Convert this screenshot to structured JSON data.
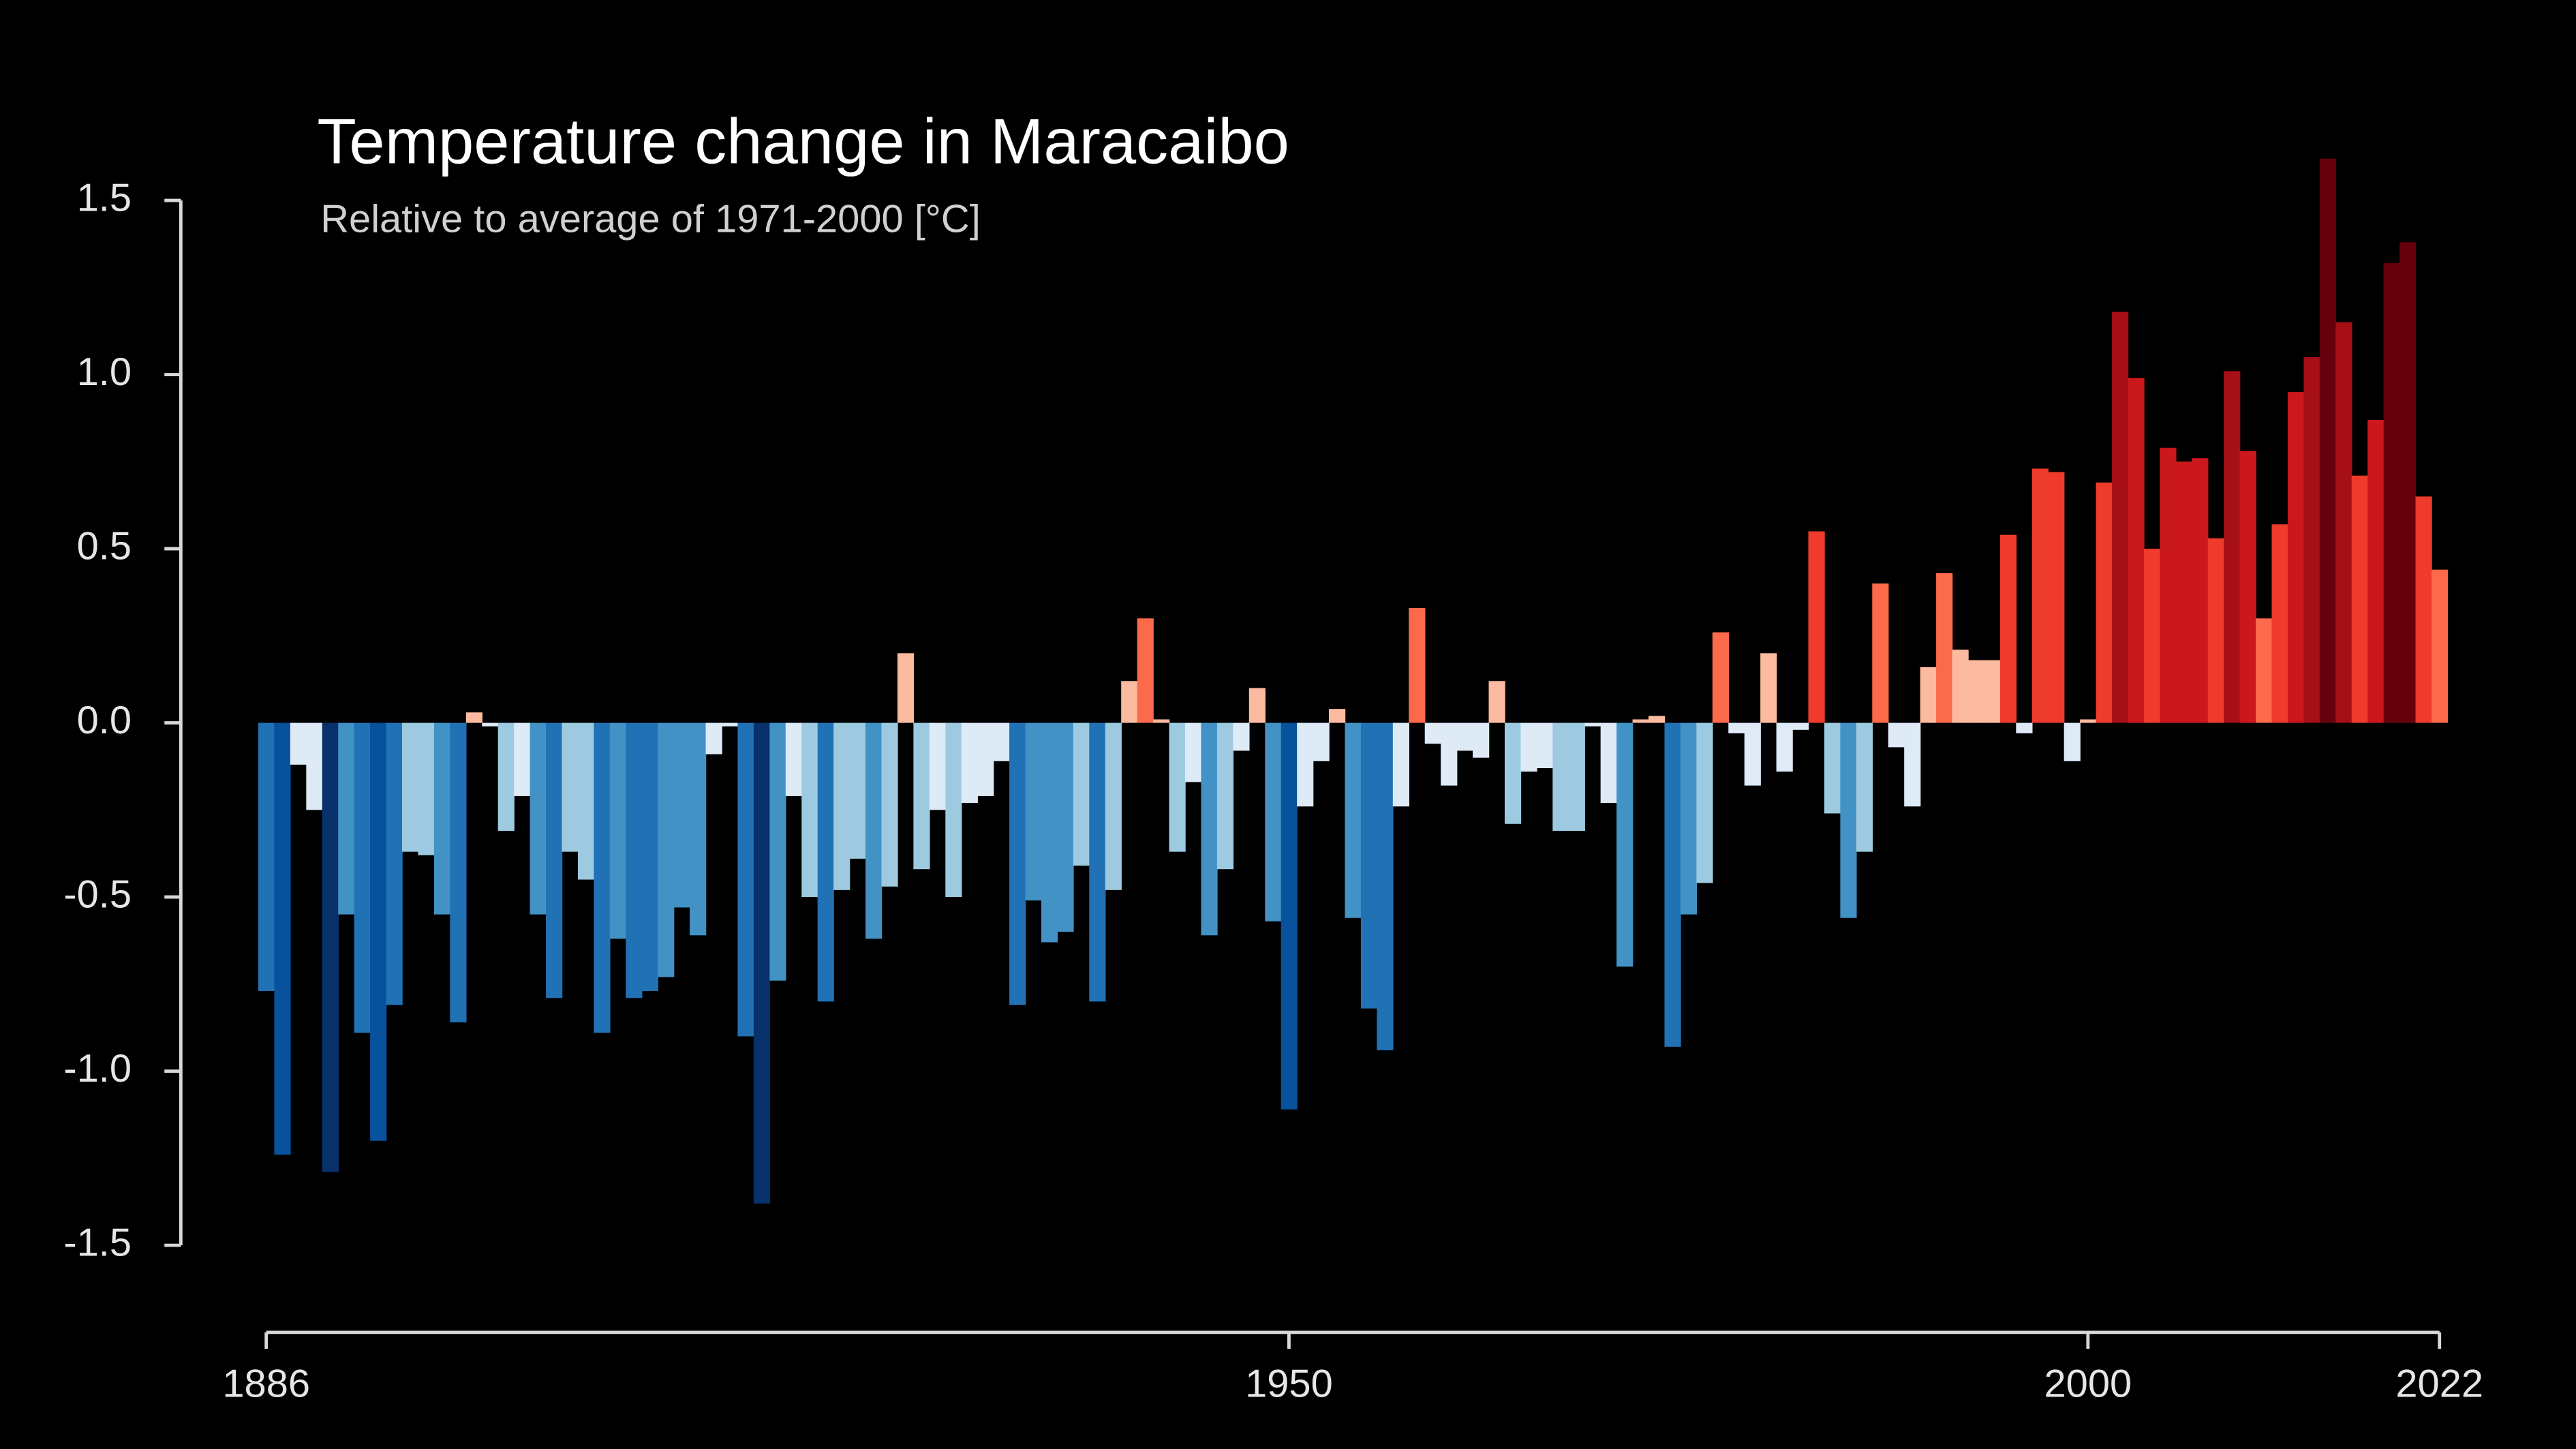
{
  "chart_data": {
    "type": "bar",
    "title": "Temperature change in Maracaibo",
    "subtitle": "Relative to average of 1971-2000  [°C]",
    "x": [
      1886,
      1887,
      1888,
      1889,
      1890,
      1891,
      1892,
      1893,
      1894,
      1895,
      1896,
      1897,
      1898,
      1899,
      1900,
      1901,
      1902,
      1903,
      1904,
      1905,
      1906,
      1907,
      1908,
      1909,
      1910,
      1911,
      1912,
      1913,
      1914,
      1915,
      1916,
      1917,
      1918,
      1919,
      1920,
      1921,
      1922,
      1923,
      1924,
      1925,
      1926,
      1927,
      1928,
      1929,
      1930,
      1931,
      1932,
      1933,
      1934,
      1935,
      1936,
      1937,
      1938,
      1939,
      1940,
      1941,
      1942,
      1943,
      1944,
      1945,
      1946,
      1947,
      1948,
      1949,
      1950,
      1951,
      1952,
      1953,
      1954,
      1955,
      1956,
      1957,
      1958,
      1959,
      1960,
      1961,
      1962,
      1963,
      1964,
      1965,
      1966,
      1967,
      1968,
      1969,
      1970,
      1971,
      1972,
      1973,
      1974,
      1975,
      1976,
      1977,
      1978,
      1979,
      1980,
      1981,
      1982,
      1983,
      1984,
      1985,
      1986,
      1987,
      1988,
      1989,
      1990,
      1991,
      1992,
      1993,
      1994,
      1995,
      1996,
      1997,
      1998,
      1999,
      2000,
      2001,
      2002,
      2003,
      2004,
      2005,
      2006,
      2007,
      2008,
      2009,
      2010,
      2011,
      2012,
      2013,
      2014,
      2015,
      2016,
      2017,
      2018,
      2019,
      2020,
      2021,
      2022
    ],
    "values": [
      -0.77,
      -1.24,
      -0.12,
      -0.25,
      -1.29,
      -0.55,
      -0.89,
      -1.2,
      -0.81,
      -0.37,
      -0.38,
      -0.55,
      -0.86,
      0.03,
      -0.01,
      -0.31,
      -0.21,
      -0.55,
      -0.79,
      -0.37,
      -0.45,
      -0.89,
      -0.62,
      -0.79,
      -0.77,
      -0.73,
      -0.53,
      -0.61,
      -0.09,
      -0.01,
      -0.9,
      -1.38,
      -0.74,
      -0.21,
      -0.5,
      -0.8,
      -0.48,
      -0.39,
      -0.62,
      -0.47,
      0.2,
      -0.42,
      -0.25,
      -0.5,
      -0.23,
      -0.21,
      -0.11,
      -0.81,
      -0.51,
      -0.63,
      -0.6,
      -0.41,
      -0.8,
      -0.48,
      0.12,
      0.3,
      0.01,
      -0.37,
      -0.17,
      -0.61,
      -0.42,
      -0.08,
      0.1,
      -0.57,
      -1.11,
      -0.24,
      -0.11,
      0.04,
      -0.56,
      -0.82,
      -0.94,
      -0.24,
      0.33,
      -0.06,
      -0.18,
      -0.08,
      -0.1,
      0.12,
      -0.29,
      -0.14,
      -0.13,
      -0.31,
      -0.31,
      -0.01,
      -0.23,
      -0.7,
      0.01,
      0.02,
      -0.93,
      -0.55,
      -0.46,
      0.26,
      -0.03,
      -0.18,
      0.2,
      -0.14,
      -0.02,
      0.55,
      -0.26,
      -0.56,
      -0.37,
      0.4,
      -0.07,
      -0.24,
      0.16,
      0.43,
      0.21,
      0.18,
      0.18,
      0.54,
      -0.03,
      0.73,
      0.72,
      -0.11,
      0.01,
      0.69,
      1.18,
      0.99,
      0.5,
      0.79,
      0.75,
      0.76,
      0.53,
      1.01,
      0.78,
      0.3,
      0.57,
      0.95,
      1.05,
      1.62,
      1.15,
      0.71,
      0.87,
      1.32,
      1.38,
      0.65,
      0.44
    ],
    "colormap": [
      "#08306b",
      "#08519c",
      "#2171b5",
      "#4292c6",
      "#9ecae1",
      "#deebf7",
      "#fcbba1",
      "#fb6a4a",
      "#ef3b2c",
      "#cb181d",
      "#a50f15",
      "#67000d"
    ],
    "xlim": [
      1886,
      2022
    ],
    "xticks": [
      1886,
      1950,
      2000,
      2022
    ],
    "ylim": [
      -1.5,
      1.5
    ],
    "yticks": [
      1.5,
      {
        "value": 1.0,
        "label": "1.0"
      },
      0.5,
      {
        "value": 0.0,
        "label": "0.0"
      },
      -0.5,
      {
        "value": -1.0,
        "label": "-1.0"
      },
      -1.5
    ],
    "grid": false
  }
}
